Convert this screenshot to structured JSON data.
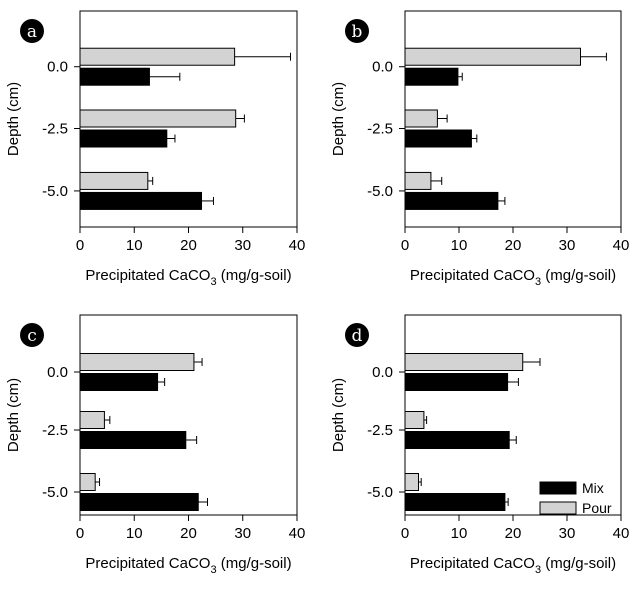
{
  "figure": {
    "legend": {
      "entries": [
        {
          "label": "Mix",
          "color": "#000000"
        },
        {
          "label": "Pour",
          "color": "#d3d3d3"
        }
      ],
      "placement": "bottom-right of panel d"
    }
  },
  "chart_data": [
    {
      "panel": "a",
      "type": "bar",
      "orientation": "horizontal",
      "categories": [
        "0.0",
        "-2.5",
        "-5.0"
      ],
      "series": [
        {
          "name": "Pour",
          "color": "#d3d3d3",
          "values": [
            28.5,
            28.7,
            12.5
          ],
          "errors": [
            10.3,
            1.6,
            0.9
          ]
        },
        {
          "name": "Mix",
          "color": "#000000",
          "values": [
            12.8,
            16.0,
            22.4
          ],
          "errors": [
            5.6,
            1.5,
            2.2
          ]
        }
      ],
      "xlabel": "Precipitated CaCO",
      "xlabel_subscript": "3",
      "xlabel_unit": " (mg/g-soil)",
      "ylabel": "Depth (cm)",
      "xlim": [
        0,
        40
      ],
      "xticks": [
        "0",
        "10",
        "20",
        "30",
        "40"
      ]
    },
    {
      "panel": "b",
      "type": "bar",
      "orientation": "horizontal",
      "categories": [
        "0.0",
        "-2.5",
        "-5.0"
      ],
      "series": [
        {
          "name": "Pour",
          "color": "#d3d3d3",
          "values": [
            32.5,
            6.0,
            4.8
          ],
          "errors": [
            4.8,
            1.8,
            2.0
          ]
        },
        {
          "name": "Mix",
          "color": "#000000",
          "values": [
            9.8,
            12.3,
            17.2
          ],
          "errors": [
            0.8,
            1.0,
            1.3
          ]
        }
      ],
      "xlabel": "Precipitated CaCO",
      "xlabel_subscript": "3",
      "xlabel_unit": " (mg/g-soil)",
      "ylabel": "Depth (cm)",
      "xlim": [
        0,
        40
      ],
      "xticks": [
        "0",
        "10",
        "20",
        "30",
        "40"
      ]
    },
    {
      "panel": "c",
      "type": "bar",
      "orientation": "horizontal",
      "categories": [
        "0.0",
        "-2.5",
        "-5.0"
      ],
      "series": [
        {
          "name": "Pour",
          "color": "#d3d3d3",
          "values": [
            21.0,
            4.5,
            2.8
          ],
          "errors": [
            1.5,
            1.0,
            0.8
          ]
        },
        {
          "name": "Mix",
          "color": "#000000",
          "values": [
            14.3,
            19.5,
            21.8
          ],
          "errors": [
            1.3,
            2.0,
            1.7
          ]
        }
      ],
      "xlabel": "Precipitated CaCO",
      "xlabel_subscript": "3",
      "xlabel_unit": " (mg/g-soil)",
      "ylabel": "Depth (cm)",
      "xlim": [
        0,
        40
      ],
      "xticks": [
        "0",
        "10",
        "20",
        "30",
        "40"
      ]
    },
    {
      "panel": "d",
      "type": "bar",
      "orientation": "horizontal",
      "categories": [
        "0.0",
        "-2.5",
        "-5.0"
      ],
      "series": [
        {
          "name": "Pour",
          "color": "#d3d3d3",
          "values": [
            21.8,
            3.5,
            2.5
          ],
          "errors": [
            3.2,
            0.5,
            0.5
          ]
        },
        {
          "name": "Mix",
          "color": "#000000",
          "values": [
            19.0,
            19.3,
            18.5
          ],
          "errors": [
            2.0,
            1.3,
            0.6
          ]
        }
      ],
      "xlabel": "Precipitated CaCO",
      "xlabel_subscript": "3",
      "xlabel_unit": " (mg/g-soil)",
      "ylabel": "Depth (cm)",
      "xlim": [
        0,
        40
      ],
      "xticks": [
        "0",
        "10",
        "20",
        "30",
        "40"
      ]
    }
  ]
}
